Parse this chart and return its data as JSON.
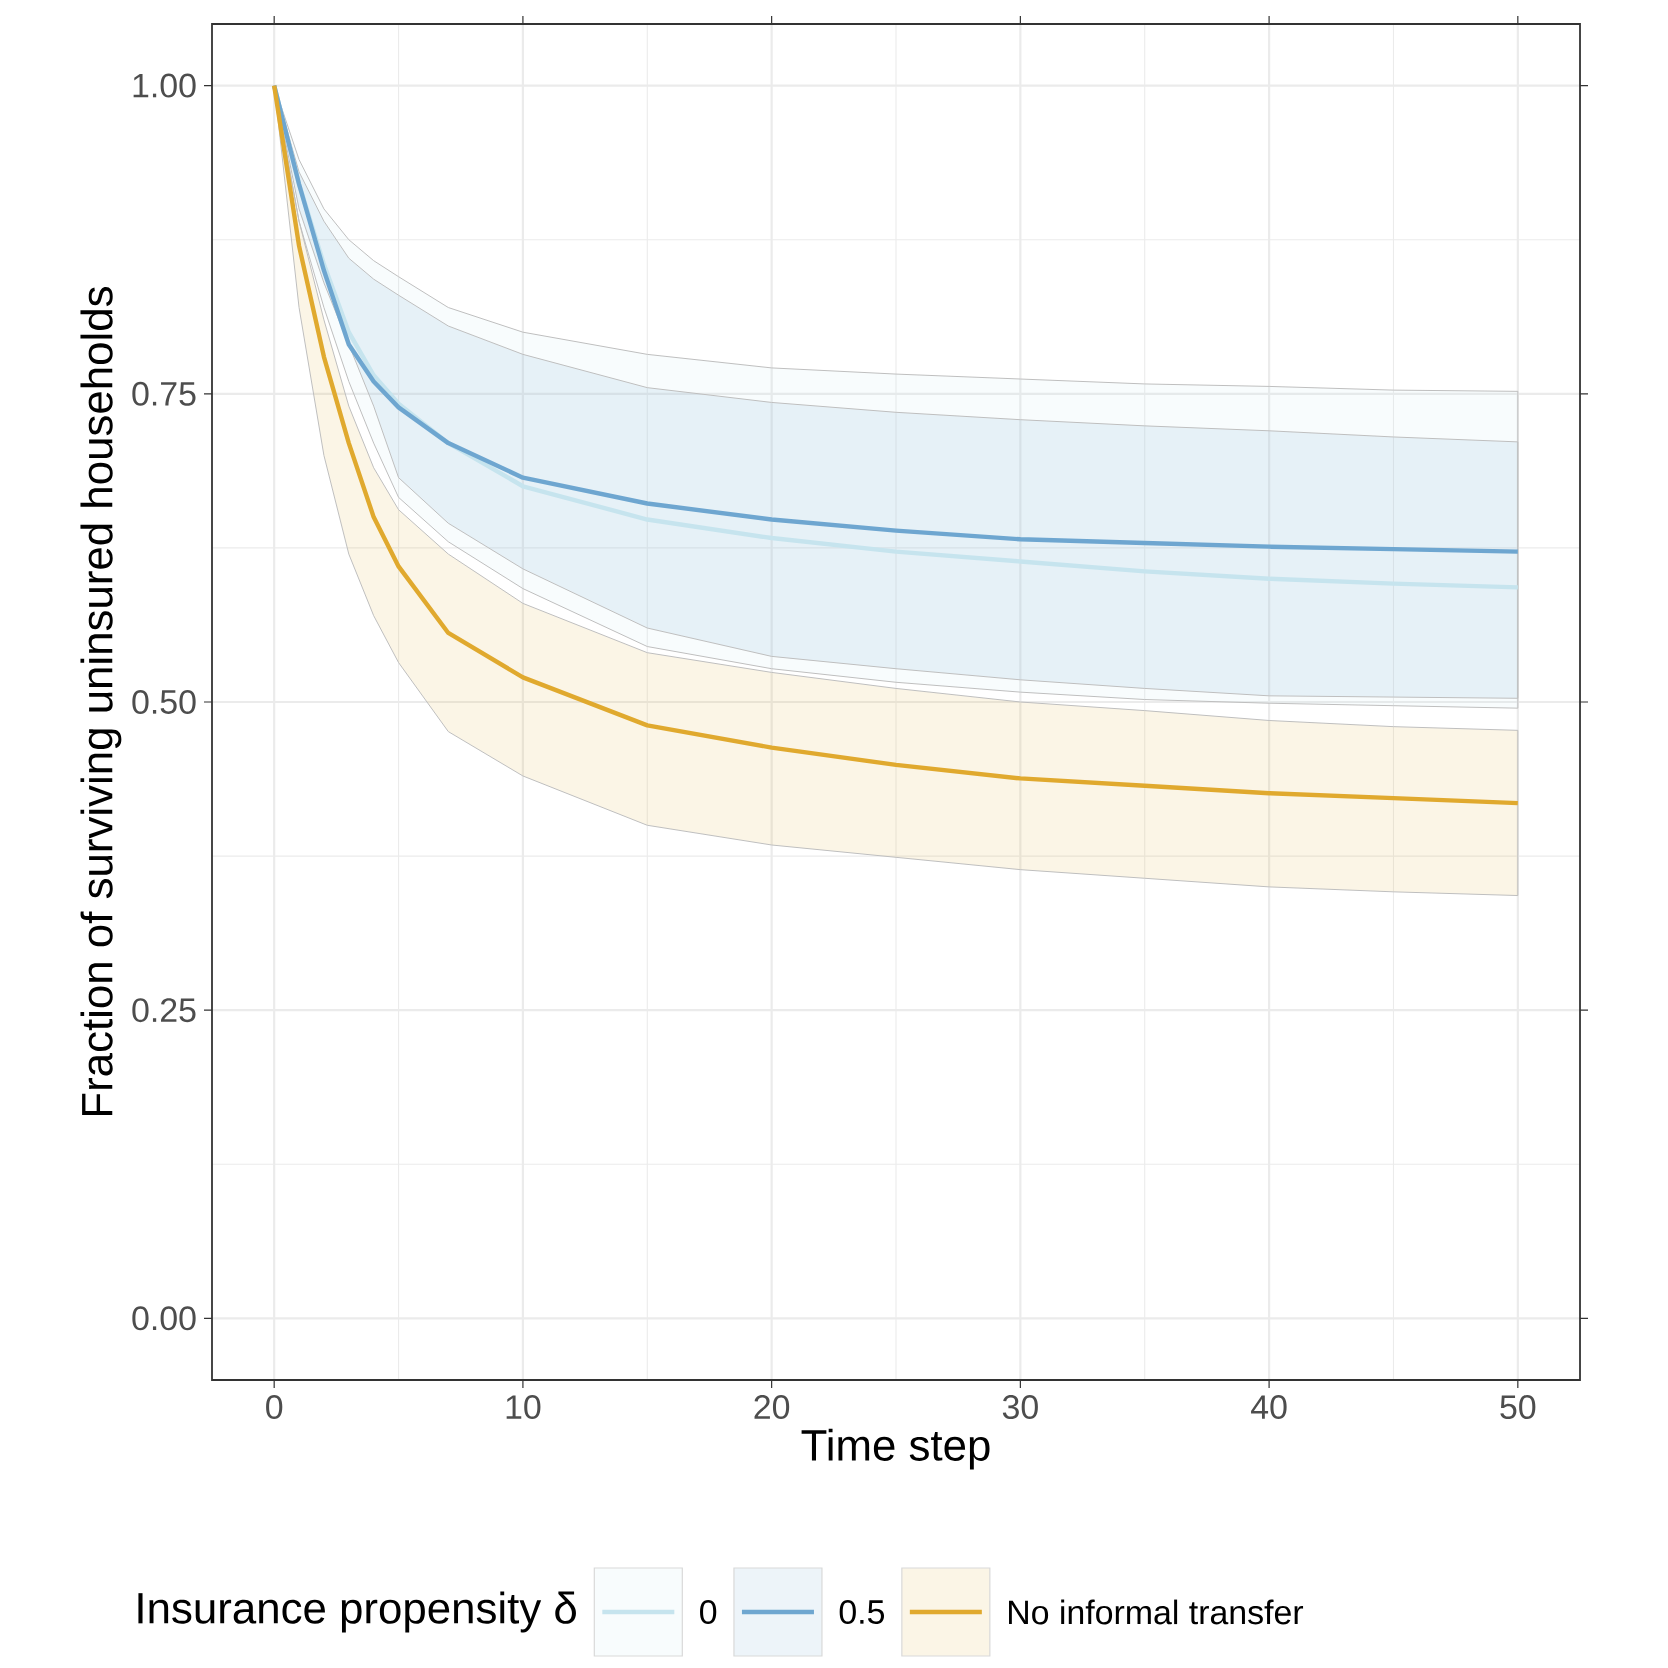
{
  "chart_data": {
    "type": "line",
    "xlabel": "Time step",
    "ylabel": "Fraction of surviving uninsured households",
    "legend_title": "Insurance propensity δ",
    "legend": "bottom",
    "grid": true,
    "x": [
      0,
      1,
      2,
      3,
      4,
      5,
      7,
      10,
      15,
      20,
      25,
      30,
      35,
      40,
      45,
      50
    ],
    "xlim": [
      -2.5,
      52.5
    ],
    "ylim": [
      -0.05,
      1.05
    ],
    "xticks": [
      0,
      10,
      20,
      30,
      40,
      50
    ],
    "yticks": [
      {
        "value": 0,
        "label": "0.00"
      },
      {
        "value": 0.25,
        "label": "0.25"
      },
      {
        "value": 0.5,
        "label": "0.50"
      },
      {
        "value": 0.75,
        "label": "0.75"
      },
      {
        "value": 1,
        "label": "1.00"
      }
    ],
    "series": [
      {
        "name": "0",
        "color": "#c6e4ee",
        "values": [
          1,
          0.92,
          0.855,
          0.8,
          0.765,
          0.742,
          0.71,
          0.675,
          0.648,
          0.633,
          0.622,
          0.614,
          0.606,
          0.6,
          0.596,
          0.593
        ],
        "upper": [
          1,
          0.94,
          0.9,
          0.875,
          0.858,
          0.845,
          0.82,
          0.8,
          0.782,
          0.771,
          0.766,
          0.762,
          0.758,
          0.756,
          0.753,
          0.752
        ],
        "lower": [
          1,
          0.89,
          0.82,
          0.76,
          0.71,
          0.666,
          0.63,
          0.592,
          0.545,
          0.527,
          0.516,
          0.508,
          0.502,
          0.499,
          0.497,
          0.495
        ]
      },
      {
        "name": "0.5",
        "color": "#6ea6d0",
        "values": [
          1,
          0.92,
          0.85,
          0.79,
          0.76,
          0.739,
          0.71,
          0.682,
          0.661,
          0.648,
          0.639,
          0.632,
          0.629,
          0.626,
          0.624,
          0.622
        ],
        "upper": [
          1,
          0.93,
          0.89,
          0.86,
          0.843,
          0.83,
          0.805,
          0.782,
          0.755,
          0.743,
          0.735,
          0.729,
          0.724,
          0.72,
          0.715,
          0.711
        ],
        "lower": [
          1,
          0.9,
          0.84,
          0.79,
          0.74,
          0.682,
          0.645,
          0.608,
          0.56,
          0.537,
          0.527,
          0.518,
          0.511,
          0.505,
          0.504,
          0.503
        ]
      },
      {
        "name": "No informal transfer",
        "color": "#e0a92e",
        "values": [
          1,
          0.87,
          0.78,
          0.71,
          0.65,
          0.61,
          0.556,
          0.52,
          0.481,
          0.463,
          0.449,
          0.438,
          0.432,
          0.426,
          0.422,
          0.418
        ],
        "upper": [
          1,
          0.89,
          0.81,
          0.74,
          0.69,
          0.656,
          0.62,
          0.58,
          0.54,
          0.524,
          0.511,
          0.5,
          0.493,
          0.485,
          0.48,
          0.477
        ],
        "lower": [
          1,
          0.82,
          0.7,
          0.62,
          0.57,
          0.532,
          0.476,
          0.44,
          0.4,
          0.384,
          0.374,
          0.364,
          0.357,
          0.35,
          0.346,
          0.343
        ]
      }
    ]
  }
}
